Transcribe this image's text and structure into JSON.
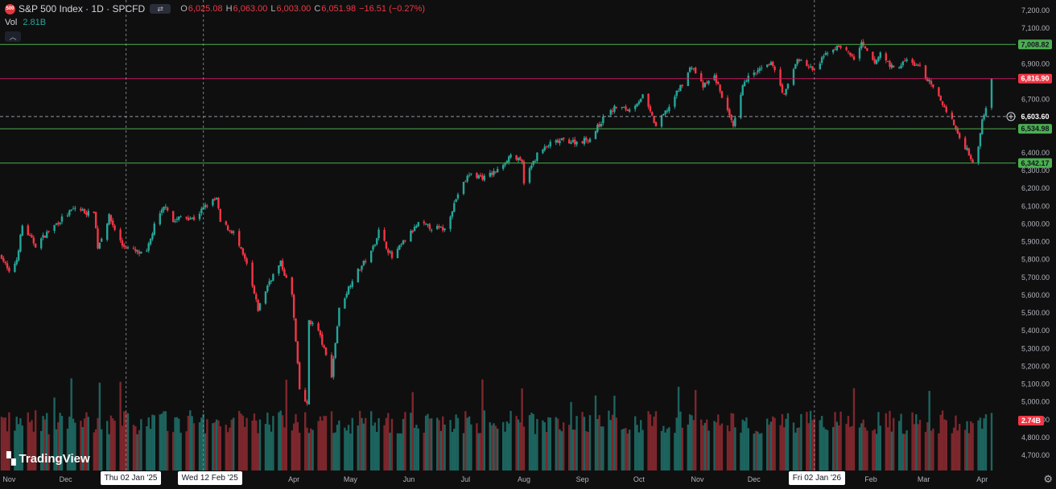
{
  "legend": {
    "logo_text": "500",
    "title": "S&P 500 Index · 1D · SPCFD",
    "open_key": "O",
    "open": "6,025.08",
    "high_key": "H",
    "high": "6,063.00",
    "low_key": "L",
    "low": "6,003.00",
    "close_key": "C",
    "close": "6,051.98",
    "change": "−16.51 (−0.27%)"
  },
  "volume": {
    "label": "Vol",
    "value": "2.81B",
    "axis_badge": "2.74B"
  },
  "brand": "TradingView",
  "crosshair_labels": [
    "Thu 02 Jan '25",
    "Wed 12 Feb '25",
    "Fri 02 Jan '26"
  ],
  "price_badges": {
    "line_7008": "7,008.82",
    "line_6816": "6,816.90",
    "current": "6,603.60",
    "line_6534": "6,534.98",
    "line_6342": "6,342.17"
  },
  "colors": {
    "up": "#26a69a",
    "down": "#f23645",
    "green_line": "#4caf50",
    "red_line": "#c2185b"
  },
  "chart_data": {
    "type": "candlestick",
    "x_range": [
      "2024-10-28",
      "2026-04-06"
    ],
    "ylim": [
      4600,
      7250
    ],
    "y_ticks": [
      {
        "v": 7200,
        "label": "7,200.00"
      },
      {
        "v": 7100,
        "label": "7,100.00"
      },
      {
        "v": 6900,
        "label": "6,900.00"
      },
      {
        "v": 6700,
        "label": "6,700.00"
      },
      {
        "v": 6400,
        "label": "6,400.00"
      },
      {
        "v": 6300,
        "label": "6,300.00"
      },
      {
        "v": 6200,
        "label": "6,200.00"
      },
      {
        "v": 6100,
        "label": "6,100.00"
      },
      {
        "v": 6000,
        "label": "6,000.00"
      },
      {
        "v": 5900,
        "label": "5,900.00"
      },
      {
        "v": 5800,
        "label": "5,800.00"
      },
      {
        "v": 5700,
        "label": "5,700.00"
      },
      {
        "v": 5600,
        "label": "5,600.00"
      },
      {
        "v": 5500,
        "label": "5,500.00"
      },
      {
        "v": 5400,
        "label": "5,400.00"
      },
      {
        "v": 5300,
        "label": "5,300.00"
      },
      {
        "v": 5200,
        "label": "5,200.00"
      },
      {
        "v": 5100,
        "label": "5,100.00"
      },
      {
        "v": 5000,
        "label": "5,000.00"
      },
      {
        "v": 4900,
        "label": "4,900.00"
      },
      {
        "v": 4800,
        "label": "4,800.00"
      },
      {
        "v": 4700,
        "label": "4,700.00"
      }
    ],
    "x_labels": [
      {
        "label": "Nov",
        "date": "2024-11-01"
      },
      {
        "label": "Dec",
        "date": "2024-12-01"
      },
      {
        "label": "Mar",
        "date": "2025-03-01"
      },
      {
        "label": "Apr",
        "date": "2025-04-01"
      },
      {
        "label": "May",
        "date": "2025-05-01"
      },
      {
        "label": "Jun",
        "date": "2025-06-01"
      },
      {
        "label": "Jul",
        "date": "2025-07-01"
      },
      {
        "label": "Aug",
        "date": "2025-08-01"
      },
      {
        "label": "Sep",
        "date": "2025-09-01"
      },
      {
        "label": "Oct",
        "date": "2025-10-01"
      },
      {
        "label": "Nov",
        "date": "2025-11-01"
      },
      {
        "label": "Dec",
        "date": "2025-12-01"
      },
      {
        "label": "Feb",
        "date": "2026-02-01"
      },
      {
        "label": "Mar",
        "date": "2026-03-01"
      },
      {
        "label": "Apr",
        "date": "2026-04-01"
      }
    ],
    "horizontal_lines": [
      {
        "value": 7008.82,
        "color": "green"
      },
      {
        "value": 6816.9,
        "color": "red"
      },
      {
        "value": 6603.6,
        "color": "gray",
        "style": "dashed"
      },
      {
        "value": 6534.98,
        "color": "green"
      },
      {
        "value": 6342.17,
        "color": "green"
      }
    ],
    "vertical_lines": [
      {
        "date": "2025-01-02",
        "style": "dashed"
      },
      {
        "date": "2025-02-12",
        "style": "dashed"
      },
      {
        "date": "2026-01-02",
        "style": "dashed"
      }
    ],
    "price_path": [
      [
        "2024-10-28",
        5820
      ],
      [
        "2024-11-01",
        5720
      ],
      [
        "2024-11-05",
        5800
      ],
      [
        "2024-11-08",
        5990
      ],
      [
        "2024-11-15",
        5880
      ],
      [
        "2024-11-22",
        5960
      ],
      [
        "2024-11-29",
        6030
      ],
      [
        "2024-12-06",
        6090
      ],
      [
        "2024-12-13",
        6060
      ],
      [
        "2024-12-16",
        6075
      ],
      [
        "2024-12-18",
        5870
      ],
      [
        "2024-12-24",
        6040
      ],
      [
        "2024-12-31",
        5880
      ],
      [
        "2025-01-10",
        5830
      ],
      [
        "2025-01-13",
        5840
      ],
      [
        "2025-01-17",
        5990
      ],
      [
        "2025-01-23",
        6110
      ],
      [
        "2025-01-27",
        6010
      ],
      [
        "2025-01-31",
        6040
      ],
      [
        "2025-02-07",
        6030
      ],
      [
        "2025-02-14",
        6110
      ],
      [
        "2025-02-19",
        6140
      ],
      [
        "2025-02-21",
        6010
      ],
      [
        "2025-02-28",
        5950
      ],
      [
        "2025-03-07",
        5770
      ],
      [
        "2025-03-13",
        5520
      ],
      [
        "2025-03-19",
        5680
      ],
      [
        "2025-03-25",
        5780
      ],
      [
        "2025-03-31",
        5600
      ],
      [
        "2025-04-04",
        5070
      ],
      [
        "2025-04-08",
        4980
      ],
      [
        "2025-04-09",
        5460
      ],
      [
        "2025-04-14",
        5400
      ],
      [
        "2025-04-21",
        5150
      ],
      [
        "2025-04-25",
        5520
      ],
      [
        "2025-05-02",
        5690
      ],
      [
        "2025-05-12",
        5840
      ],
      [
        "2025-05-16",
        5960
      ],
      [
        "2025-05-23",
        5810
      ],
      [
        "2025-05-30",
        5910
      ],
      [
        "2025-06-06",
        6000
      ],
      [
        "2025-06-13",
        5980
      ],
      [
        "2025-06-20",
        5970
      ],
      [
        "2025-06-27",
        6170
      ],
      [
        "2025-07-03",
        6280
      ],
      [
        "2025-07-11",
        6260
      ],
      [
        "2025-07-18",
        6300
      ],
      [
        "2025-07-25",
        6390
      ],
      [
        "2025-07-31",
        6340
      ],
      [
        "2025-08-01",
        6240
      ],
      [
        "2025-08-08",
        6390
      ],
      [
        "2025-08-15",
        6450
      ],
      [
        "2025-08-22",
        6470
      ],
      [
        "2025-08-29",
        6460
      ],
      [
        "2025-09-05",
        6480
      ],
      [
        "2025-09-12",
        6590
      ],
      [
        "2025-09-19",
        6660
      ],
      [
        "2025-09-26",
        6640
      ],
      [
        "2025-10-03",
        6720
      ],
      [
        "2025-10-10",
        6550
      ],
      [
        "2025-10-17",
        6660
      ],
      [
        "2025-10-24",
        6790
      ],
      [
        "2025-10-29",
        6890
      ],
      [
        "2025-11-04",
        6770
      ],
      [
        "2025-11-10",
        6830
      ],
      [
        "2025-11-14",
        6720
      ],
      [
        "2025-11-20",
        6540
      ],
      [
        "2025-11-26",
        6810
      ],
      [
        "2025-12-05",
        6870
      ],
      [
        "2025-12-11",
        6900
      ],
      [
        "2025-12-17",
        6720
      ],
      [
        "2025-12-24",
        6930
      ],
      [
        "2026-01-02",
        6860
      ],
      [
        "2026-01-09",
        6970
      ],
      [
        "2026-01-16",
        7000
      ],
      [
        "2026-01-23",
        6930
      ],
      [
        "2026-01-27",
        7010
      ],
      [
        "2026-02-03",
        6900
      ],
      [
        "2026-02-06",
        6960
      ],
      [
        "2026-02-13",
        6870
      ],
      [
        "2026-02-20",
        6920
      ],
      [
        "2026-02-27",
        6880
      ],
      [
        "2026-03-06",
        6760
      ],
      [
        "2026-03-13",
        6640
      ],
      [
        "2026-03-17",
        6560
      ],
      [
        "2026-03-20",
        6480
      ],
      [
        "2026-03-24",
        6420
      ],
      [
        "2026-03-27",
        6350
      ],
      [
        "2026-03-30",
        6420
      ],
      [
        "2026-04-01",
        6600
      ],
      [
        "2026-04-02",
        6610
      ],
      [
        "2026-04-06",
        6830
      ]
    ]
  }
}
